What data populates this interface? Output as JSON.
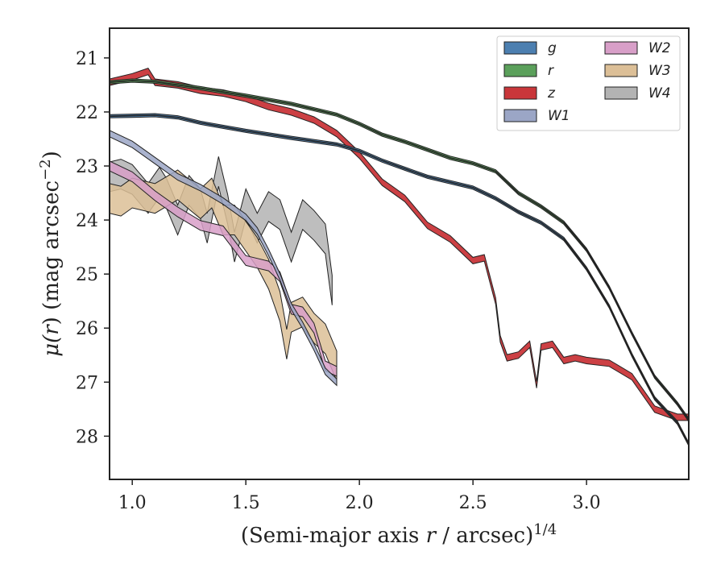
{
  "chart_data": {
    "type": "area",
    "xlabel_pre": "(Semi-major axis ",
    "xlabel_var": "r",
    "xlabel_post": " / arcsec)",
    "xlabel_sup": "1/4",
    "ylabel_pre": "μ(",
    "ylabel_var": "r",
    "ylabel_post": ") (mag arcsec",
    "ylabel_sup": "−2",
    "ylabel_end": ")",
    "xlim": [
      0.9,
      3.45
    ],
    "ylim": [
      28.8,
      20.45
    ],
    "y_inverted": true,
    "xticks": [
      1.0,
      1.5,
      2.0,
      2.5,
      3.0
    ],
    "xtick_labels": [
      "1.0",
      "1.5",
      "2.0",
      "2.5",
      "3.0"
    ],
    "yticks": [
      21,
      22,
      23,
      24,
      25,
      26,
      27,
      28
    ],
    "ytick_labels": [
      "21",
      "22",
      "23",
      "24",
      "25",
      "26",
      "27",
      "28"
    ],
    "legend_position": "top-right",
    "legend_columns": 2,
    "series": [
      {
        "name": "g",
        "color": "#4c7fb0",
        "x": [
          0.9,
          1.0,
          1.1,
          1.2,
          1.3,
          1.5,
          1.7,
          1.9,
          2.0,
          2.1,
          2.2,
          2.3,
          2.4,
          2.5,
          2.6,
          2.7,
          2.8,
          2.9,
          3.0,
          3.1,
          3.2,
          3.3,
          3.4,
          3.45
        ],
        "y": [
          22.08,
          22.07,
          22.06,
          22.1,
          22.2,
          22.35,
          22.48,
          22.6,
          22.72,
          22.9,
          23.05,
          23.2,
          23.3,
          23.4,
          23.6,
          23.85,
          24.05,
          24.35,
          24.9,
          25.6,
          26.5,
          27.3,
          27.75,
          28.15
        ],
        "band": 0.06
      },
      {
        "name": "r",
        "color": "#5ba05b",
        "x": [
          0.9,
          1.0,
          1.1,
          1.2,
          1.3,
          1.5,
          1.7,
          1.9,
          2.0,
          2.1,
          2.2,
          2.3,
          2.4,
          2.5,
          2.6,
          2.7,
          2.8,
          2.9,
          3.0,
          3.1,
          3.2,
          3.3,
          3.4,
          3.45
        ],
        "y": [
          21.45,
          21.42,
          21.44,
          21.5,
          21.56,
          21.7,
          21.85,
          22.05,
          22.22,
          22.42,
          22.55,
          22.7,
          22.85,
          22.95,
          23.1,
          23.5,
          23.75,
          24.05,
          24.55,
          25.25,
          26.1,
          26.9,
          27.4,
          27.7
        ],
        "band": 0.06
      },
      {
        "name": "z",
        "color": "#c9363a",
        "x": [
          0.9,
          1.0,
          1.07,
          1.1,
          1.2,
          1.3,
          1.4,
          1.5,
          1.6,
          1.7,
          1.8,
          1.9,
          2.0,
          2.05,
          2.1,
          2.2,
          2.3,
          2.4,
          2.5,
          2.55,
          2.6,
          2.62,
          2.65,
          2.7,
          2.75,
          2.78,
          2.8,
          2.85,
          2.9,
          2.95,
          3.0,
          3.1,
          3.2,
          3.3,
          3.4,
          3.45
        ],
        "y": [
          21.45,
          21.35,
          21.25,
          21.45,
          21.5,
          21.6,
          21.65,
          21.75,
          21.9,
          22.0,
          22.15,
          22.4,
          22.8,
          23.05,
          23.3,
          23.6,
          24.1,
          24.35,
          24.75,
          24.7,
          25.5,
          26.2,
          26.55,
          26.5,
          26.3,
          27.05,
          26.35,
          26.3,
          26.6,
          26.55,
          26.6,
          26.65,
          26.9,
          27.5,
          27.65,
          27.65
        ],
        "band": 0.12
      },
      {
        "name": "W1",
        "color": "#9ba6c6",
        "x": [
          0.9,
          1.0,
          1.1,
          1.2,
          1.3,
          1.4,
          1.5,
          1.55,
          1.6,
          1.65,
          1.7,
          1.75,
          1.8,
          1.85,
          1.9
        ],
        "y": [
          22.4,
          22.6,
          22.9,
          23.2,
          23.4,
          23.65,
          23.95,
          24.2,
          24.6,
          25.05,
          25.6,
          25.95,
          26.35,
          26.8,
          27.0
        ],
        "band": 0.12
      },
      {
        "name": "W2",
        "color": "#d89fc8",
        "x": [
          0.9,
          1.0,
          1.1,
          1.2,
          1.3,
          1.4,
          1.5,
          1.55,
          1.6,
          1.65,
          1.7,
          1.75,
          1.8,
          1.85,
          1.9
        ],
        "y": [
          23.0,
          23.2,
          23.55,
          23.85,
          24.1,
          24.2,
          24.75,
          24.8,
          24.85,
          25.05,
          25.65,
          25.7,
          26.0,
          26.7,
          26.8
        ],
        "band": 0.18
      },
      {
        "name": "W3",
        "color": "#dcbf97",
        "x": [
          0.9,
          0.95,
          1.0,
          1.1,
          1.2,
          1.3,
          1.35,
          1.4,
          1.45,
          1.5,
          1.55,
          1.6,
          1.65,
          1.68,
          1.7,
          1.75,
          1.8,
          1.85,
          1.9
        ],
        "y": [
          23.6,
          23.65,
          23.5,
          23.6,
          23.35,
          23.7,
          23.5,
          24.0,
          24.0,
          24.3,
          24.6,
          25.0,
          25.6,
          26.3,
          25.8,
          25.7,
          26.0,
          26.2,
          26.7
        ],
        "band": 0.55
      },
      {
        "name": "W4",
        "color": "#b3b3b3",
        "x": [
          0.9,
          0.95,
          1.0,
          1.07,
          1.12,
          1.15,
          1.2,
          1.25,
          1.3,
          1.33,
          1.38,
          1.42,
          1.45,
          1.5,
          1.55,
          1.6,
          1.65,
          1.7,
          1.75,
          1.8,
          1.85,
          1.88
        ],
        "y": [
          23.2,
          23.15,
          23.25,
          23.6,
          23.3,
          23.5,
          24.0,
          23.45,
          23.7,
          24.15,
          23.1,
          23.8,
          24.5,
          23.7,
          24.15,
          23.75,
          23.9,
          24.5,
          23.9,
          24.1,
          24.35,
          25.3
        ],
        "band": 0.55
      }
    ]
  }
}
